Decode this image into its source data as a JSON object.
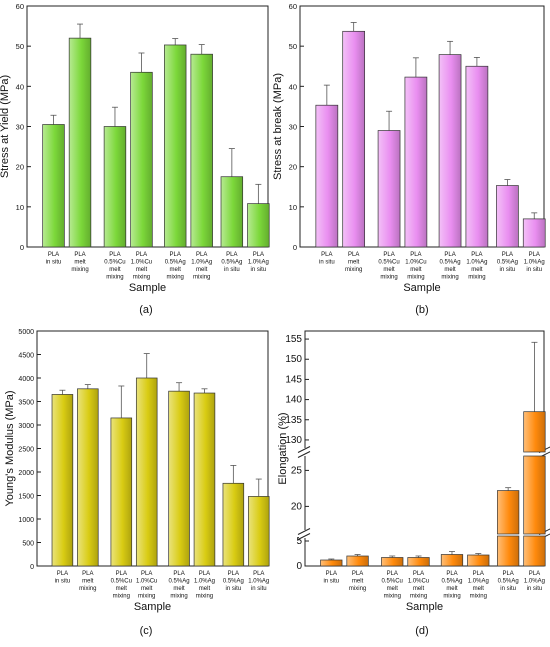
{
  "chart_data": [
    {
      "id": "a",
      "panel_label": "(a)",
      "type": "bar",
      "ylabel": "Stress at Yield (MPa)",
      "xlabel": "Sample",
      "ylim": [
        0,
        60
      ],
      "yticks": [
        "0",
        "10",
        "20",
        "30",
        "40",
        "50",
        "60"
      ],
      "color": "#7cd83a",
      "categories": [
        [
          "PLA",
          "in situ"
        ],
        [
          "PLA",
          "melt",
          "mixing"
        ],
        [
          "PLA",
          "0.5%Cu",
          "melt",
          "mixing"
        ],
        [
          "PLA",
          "1.0%Cu",
          "melt",
          "mixing"
        ],
        [
          "PLA",
          "0.5%Ag",
          "melt",
          "mixing"
        ],
        [
          "PLA",
          "1.0%Ag",
          "melt",
          "mixing"
        ],
        [
          "PLA",
          "0.5%Ag",
          "in situ"
        ],
        [
          "PLA",
          "1.0%Ag",
          "in situ"
        ]
      ],
      "values": [
        30.5,
        52,
        30,
        43.5,
        50.3,
        48,
        17.5,
        10.8
      ],
      "errors": [
        2.3,
        3.5,
        4.8,
        4.8,
        1.6,
        2.4,
        7.0,
        4.8
      ]
    },
    {
      "id": "b",
      "panel_label": "(b)",
      "type": "bar",
      "ylabel": "Stress at break (MPa)",
      "xlabel": "Sample",
      "ylim": [
        0,
        60
      ],
      "yticks": [
        "0",
        "10",
        "20",
        "30",
        "40",
        "50",
        "60"
      ],
      "color": "#e98ef0",
      "categories": [
        [
          "PLA",
          "in situ"
        ],
        [
          "PLA",
          "melt",
          "mixing"
        ],
        [
          "PLA",
          "0.5%Cu",
          "melt",
          "mixing"
        ],
        [
          "PLA",
          "1.0%Cu",
          "melt",
          "mixing"
        ],
        [
          "PLA",
          "0.5%Ag",
          "melt",
          "mixing"
        ],
        [
          "PLA",
          "1.0%Ag",
          "melt",
          "mixing"
        ],
        [
          "PLA",
          "0.5%Ag",
          "in situ"
        ],
        [
          "PLA",
          "1.0%Ag",
          "in situ"
        ]
      ],
      "values": [
        35.3,
        53.7,
        29,
        42.3,
        47.9,
        45,
        15.3,
        7
      ],
      "errors": [
        5.0,
        2.2,
        4.8,
        4.8,
        3.3,
        2.2,
        1.5,
        1.5
      ]
    },
    {
      "id": "c",
      "panel_label": "(c)",
      "type": "bar",
      "ylabel": "Young's Modulus (MPa)",
      "xlabel": "Sample",
      "ylim": [
        0,
        5000
      ],
      "yticks": [
        "0",
        "500",
        "1000",
        "1500",
        "2000",
        "2500",
        "3000",
        "3500",
        "4000",
        "4500",
        "5000"
      ],
      "color": "#d9cc13",
      "categories": [
        [
          "PLA",
          "in situ"
        ],
        [
          "PLA",
          "melt",
          "mixing"
        ],
        [
          "PLA",
          "0.5%Cu",
          "melt",
          "mixing"
        ],
        [
          "PLA",
          "1.0%Cu",
          "melt",
          "mixing"
        ],
        [
          "PLA",
          "0.5%Ag",
          "melt",
          "mixing"
        ],
        [
          "PLA",
          "1.0%Ag",
          "melt",
          "mixing"
        ],
        [
          "PLA",
          "0.5%Ag",
          "in situ"
        ],
        [
          "PLA",
          "1.0%Ag",
          "in situ"
        ]
      ],
      "values": [
        3650,
        3770,
        3150,
        4000,
        3720,
        3680,
        1760,
        1480
      ],
      "errors": [
        90,
        90,
        680,
        520,
        180,
        90,
        380,
        370
      ]
    },
    {
      "id": "d",
      "panel_label": "(d)",
      "type": "bar",
      "ylabel": "Elongation (%)",
      "xlabel": "Sample",
      "y_axis_breaks": [
        [
          6,
          17
        ],
        [
          27,
          128
        ]
      ],
      "yticks": [
        "0",
        "5",
        "20",
        "25",
        "130",
        "135",
        "140",
        "145",
        "150",
        "155"
      ],
      "color": "#ff8a0c",
      "categories": [
        [
          "PLA",
          "in situ"
        ],
        [
          "PLA",
          "melt",
          "mixing"
        ],
        [
          "PLA",
          "0.5%Cu",
          "melt",
          "mixing"
        ],
        [
          "PLA",
          "1.0%Cu",
          "melt",
          "mixing"
        ],
        [
          "PLA",
          "0.5%Ag",
          "melt",
          "mixing"
        ],
        [
          "PLA",
          "1.0%Ag",
          "melt",
          "mixing"
        ],
        [
          "PLA",
          "0.5%Ag",
          "in situ"
        ],
        [
          "PLA",
          "1.0%Ag",
          "in situ"
        ]
      ],
      "values": [
        1.2,
        2.0,
        1.7,
        1.7,
        2.3,
        2.2,
        22.2,
        137
      ],
      "errors": [
        0.2,
        0.3,
        0.3,
        0.3,
        0.6,
        0.3,
        0.4,
        17.2
      ]
    }
  ]
}
